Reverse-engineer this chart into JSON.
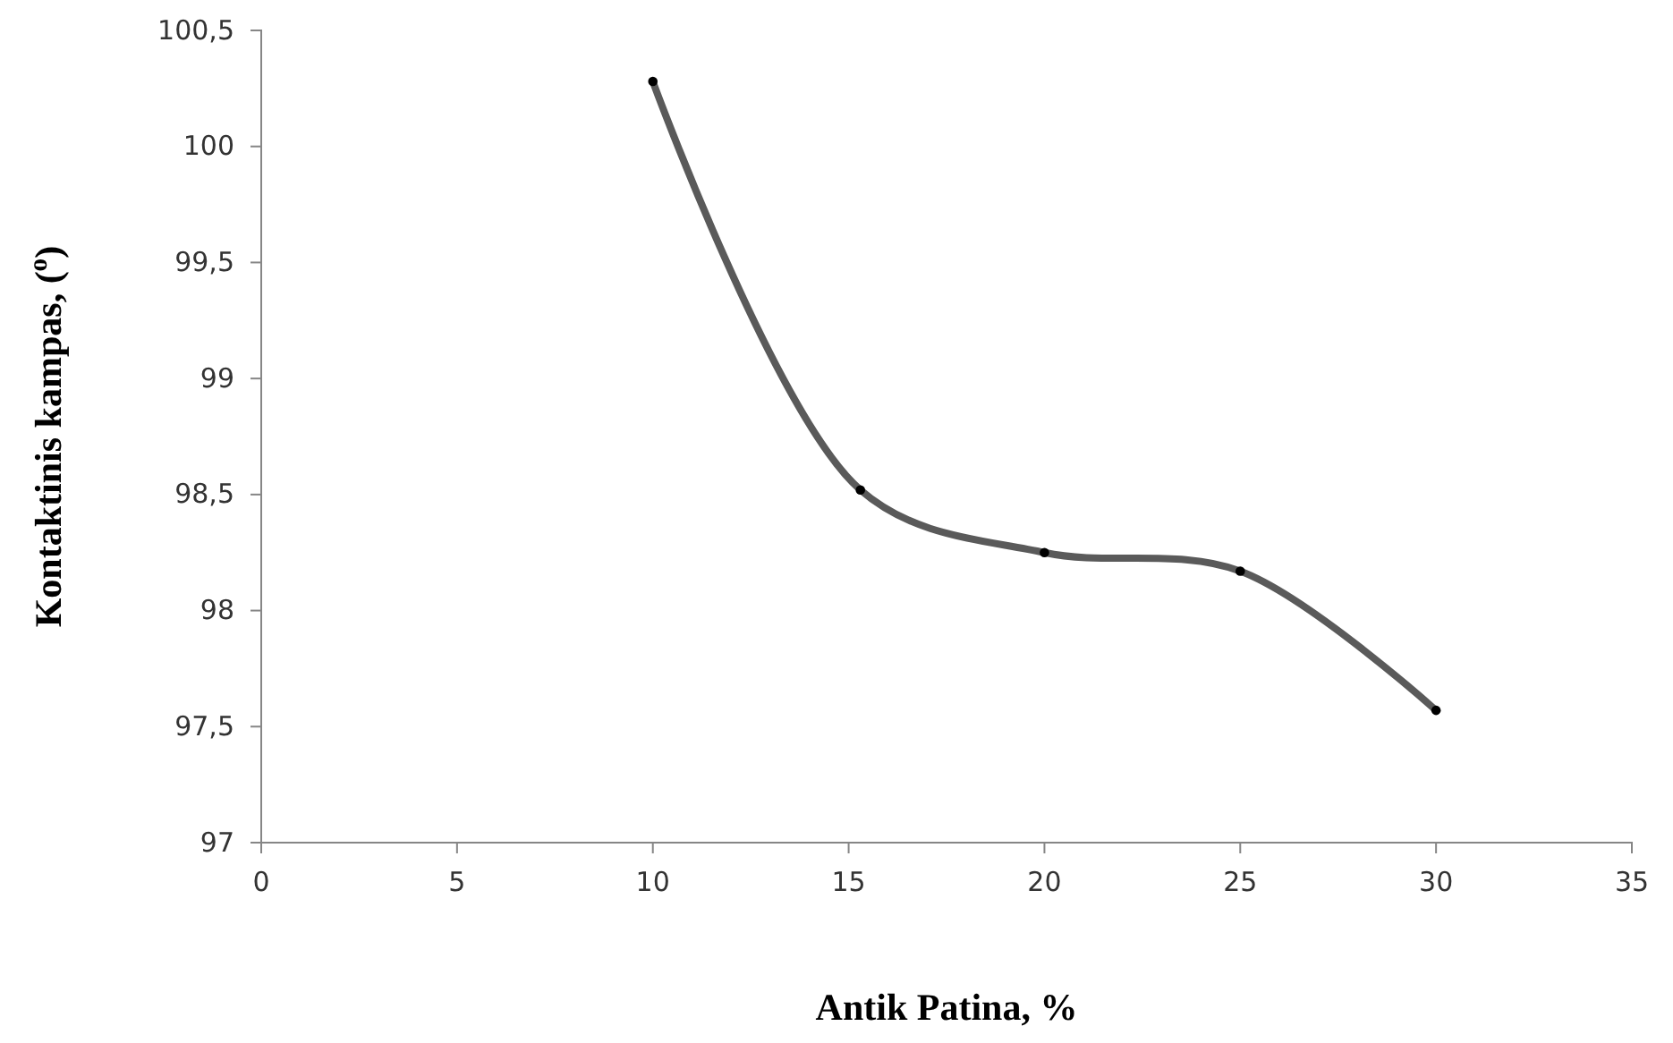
{
  "chart_data": {
    "type": "line",
    "xlabel": "Antik Patina, %",
    "ylabel": "Kontaktinis kampas, ($^{o}$)",
    "x": [
      10,
      15.3,
      20,
      25,
      30
    ],
    "series": [
      {
        "color": "#5a5a5a",
        "values": [
          100.28,
          98.52,
          98.25,
          98.17,
          97.57
        ]
      }
    ],
    "xlim": [
      0,
      35
    ],
    "xticks": [
      0,
      5,
      10,
      15,
      20,
      25,
      30,
      35
    ],
    "ylim": [
      97,
      100.5
    ],
    "yticks": [
      97,
      {
        "value": 97.5,
        "label": "97,5"
      },
      98,
      {
        "value": 98.5,
        "label": "98,5"
      },
      99,
      {
        "value": 99.5,
        "label": "99,5"
      },
      100,
      {
        "value": 100.5,
        "label": "100,5"
      }
    ],
    "grid": false,
    "marker": "circle",
    "line_style": "solid"
  }
}
